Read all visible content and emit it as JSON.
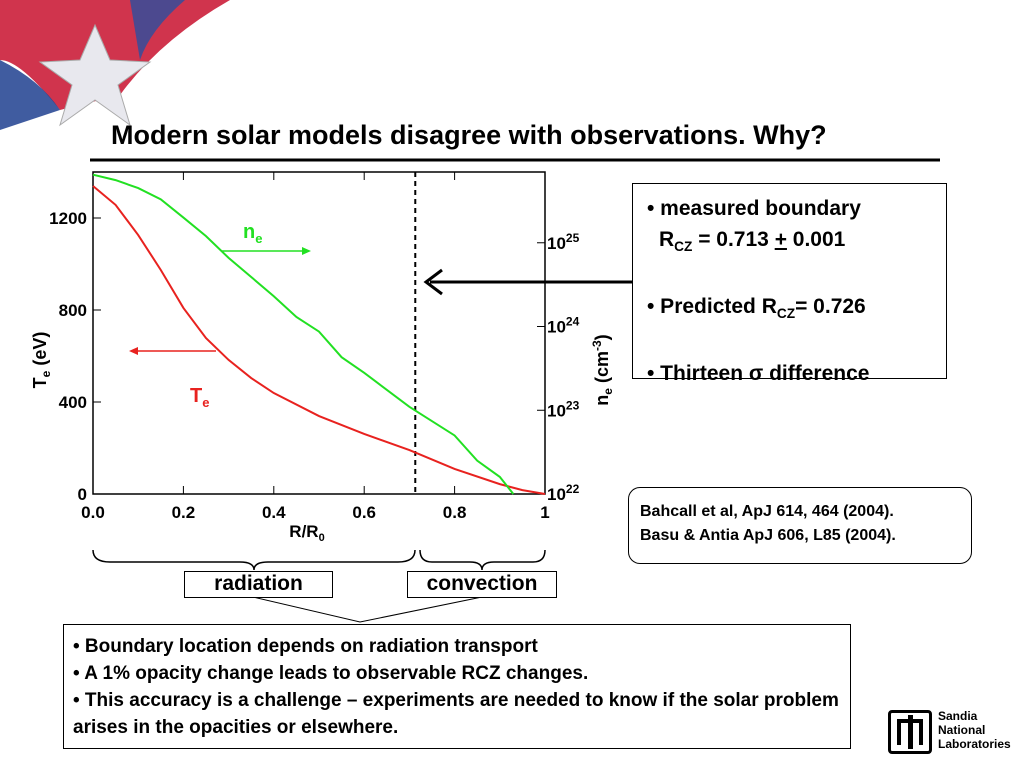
{
  "title": "Modern solar models disagree with observations. Why?",
  "chart_data": {
    "type": "line",
    "xlabel": {
      "main": "R/R",
      "sub": "0"
    },
    "ylabel": {
      "main": "T",
      "sub": "e",
      "rest": " (eV)"
    },
    "y2label": {
      "main": "n",
      "sub": "e",
      "rest": " (cm",
      "sup": "-3",
      "end": ")"
    },
    "xlim": [
      0,
      1
    ],
    "xticks": [
      {
        "value": 0,
        "label": "0.0"
      },
      0.2,
      0.4,
      0.6,
      0.8,
      1
    ],
    "ylim": [
      0,
      1400
    ],
    "yticks": [
      0,
      400,
      800,
      1200
    ],
    "y2lim": [
      1e+22,
      7e+25
    ],
    "y2scale": "log",
    "y2ticks": [
      {
        "value": 1e+22,
        "label": "10",
        "exp": "22"
      },
      {
        "value": 1e+23,
        "label": "10",
        "exp": "23"
      },
      {
        "value": 1e+24,
        "label": "10",
        "exp": "24"
      },
      {
        "value": 1e+25,
        "label": "10",
        "exp": "25"
      }
    ],
    "boundary": 0.713,
    "series": [
      {
        "name": "T",
        "name_sub": "e",
        "color": "#e8221f",
        "x": [
          0,
          0.05,
          0.1,
          0.15,
          0.2,
          0.25,
          0.3,
          0.35,
          0.4,
          0.5,
          0.6,
          0.7,
          0.8,
          0.9,
          0.95,
          1.0
        ],
        "values": [
          1339,
          1257,
          1126,
          974,
          809,
          678,
          583,
          504,
          439,
          339,
          261,
          191,
          109,
          43,
          17,
          0
        ]
      },
      {
        "name": "n",
        "name_sub": "e",
        "color": "#22e022",
        "axis": "y2",
        "x": [
          0,
          0.05,
          0.1,
          0.15,
          0.2,
          0.25,
          0.3,
          0.35,
          0.4,
          0.45,
          0.5,
          0.55,
          0.6,
          0.7,
          0.8,
          0.85,
          0.9,
          0.93
        ],
        "values": [
          6.5e+25,
          5.6e+25,
          4.5e+25,
          3.3e+25,
          2e+25,
          1.2e+25,
          6.6e+24,
          3.9e+24,
          2.3e+24,
          1.3e+24,
          8.7e+23,
          4.3e+23,
          2.8e+23,
          1.1e+23,
          5e+22,
          2.5e+22,
          1.6e+22,
          1e+22
        ]
      }
    ]
  },
  "observation": {
    "l1": "• measured boundary",
    "r": "R",
    "cz": "CZ",
    "eq": " = 0.713 ",
    "pm": "+",
    "err": " 0.001",
    "l2a": "• Predicted R",
    "l2cz": "CZ",
    "l2b": "= 0.726",
    "l3a": "• Thirteen ",
    "sigma": "σ",
    "l3b": " difference"
  },
  "references": [
    "Bahcall et al, ApJ 614, 464 (2004).",
    "Basu & Antia ApJ 606, L85 (2004)."
  ],
  "regions": [
    "radiation",
    "convection"
  ],
  "summary": [
    "• Boundary location depends on radiation transport",
    "• A 1% opacity change leads to observable RCZ changes.",
    "• This accuracy is a challenge – experiments are needed to know if the solar problem arises in the opacities or elsewhere."
  ],
  "logo": [
    "Sandia",
    "National",
    "Laboratories"
  ]
}
